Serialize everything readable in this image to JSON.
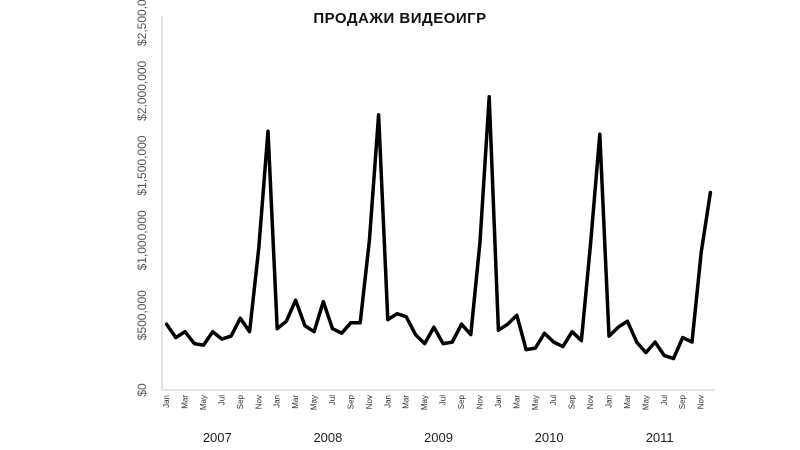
{
  "chart_data": {
    "type": "line",
    "title": "ПРОДАЖИ ВИДЕОИГР",
    "xlabel": "",
    "ylabel": "",
    "ylim": [
      0,
      2500000
    ],
    "y_ticks": [
      0,
      500000,
      1000000,
      1500000,
      2000000,
      2500000
    ],
    "y_tick_labels": [
      "$0",
      "$500,000",
      "$1,000,000",
      "$1,500,000",
      "$2,000,000",
      "$2,500,000"
    ],
    "x_tick_labels": [
      "Jan",
      "Mar",
      "May",
      "Jul",
      "Sep",
      "Nov"
    ],
    "years": [
      "2007",
      "2008",
      "2009",
      "2010",
      "2011"
    ],
    "grid": false,
    "legend": "none",
    "series": [
      {
        "color": "#000000",
        "values": [
          440000,
          350000,
          390000,
          310000,
          300000,
          390000,
          340000,
          360000,
          480000,
          390000,
          950000,
          1730000,
          410000,
          460000,
          600000,
          430000,
          390000,
          590000,
          410000,
          380000,
          450000,
          450000,
          1000000,
          1840000,
          470000,
          510000,
          490000,
          370000,
          310000,
          420000,
          310000,
          320000,
          440000,
          370000,
          990000,
          1960000,
          400000,
          440000,
          500000,
          270000,
          280000,
          380000,
          320000,
          290000,
          390000,
          330000,
          980000,
          1710000,
          360000,
          420000,
          460000,
          320000,
          250000,
          320000,
          230000,
          210000,
          350000,
          320000,
          920000,
          1320000
        ]
      }
    ]
  }
}
